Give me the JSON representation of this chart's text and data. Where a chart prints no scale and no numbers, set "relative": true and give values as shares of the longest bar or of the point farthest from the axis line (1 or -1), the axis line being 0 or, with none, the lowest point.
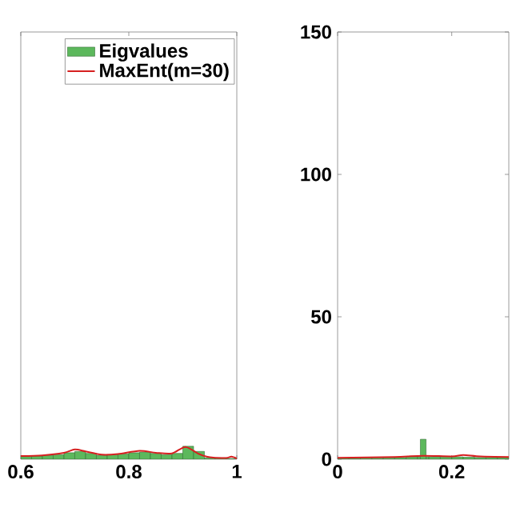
{
  "chart_data": [
    {
      "type": "histogram",
      "relative": true,
      "xlim": [
        0.6,
        1
      ],
      "xticks": [
        0.6,
        0.8,
        1
      ],
      "tick_labels": "x",
      "legend": "top right",
      "series": [
        {
          "name": "Eigvalues",
          "color": "#5cb85c",
          "bins": [
            0.6,
            0.62,
            0.64,
            0.66,
            0.68,
            0.7,
            0.72,
            0.74,
            0.76,
            0.78,
            0.8,
            0.82,
            0.84,
            0.86,
            0.88,
            0.9,
            0.92,
            0.94,
            0.96,
            0.98,
            1.0
          ],
          "values": [
            0.2,
            0.25,
            0.3,
            0.35,
            0.5,
            0.6,
            0.45,
            0.3,
            0.35,
            0.4,
            0.5,
            0.55,
            0.45,
            0.35,
            0.45,
            1.0,
            0.6,
            0.1,
            0.1,
            0.05
          ]
        },
        {
          "name": "MaxEnt(m=30)",
          "type": "line",
          "color": "#d62020",
          "x": [
            0.6,
            0.64,
            0.68,
            0.7,
            0.72,
            0.75,
            0.78,
            0.82,
            0.85,
            0.88,
            0.905,
            0.93,
            0.95,
            0.98,
            0.99,
            1.0
          ],
          "values": [
            0.25,
            0.3,
            0.5,
            0.75,
            0.6,
            0.35,
            0.4,
            0.65,
            0.5,
            0.45,
            0.95,
            0.4,
            0.15,
            0.1,
            0.2,
            0.05
          ]
        }
      ]
    },
    {
      "type": "histogram",
      "xlim": [
        0,
        0.3
      ],
      "xticks": [
        0,
        0.2
      ],
      "ylim": [
        0,
        150
      ],
      "yticks": [
        0,
        50,
        100,
        150
      ],
      "series": [
        {
          "color": "#5cb85c",
          "bins": [
            0,
            0.02,
            0.04,
            0.06,
            0.08,
            0.1,
            0.12,
            0.14,
            0.145,
            0.155,
            0.16,
            0.18,
            0.2,
            0.22,
            0.24,
            0.26,
            0.28,
            0.3
          ],
          "values": [
            0.3,
            0.3,
            0.4,
            0.4,
            0.5,
            0.6,
            0.8,
            0.8,
            7,
            0.8,
            0.8,
            0.8,
            0.8,
            0.7,
            0.6,
            0.6,
            0.6
          ]
        },
        {
          "type": "line",
          "color": "#d62020",
          "x": [
            0,
            0.1,
            0.15,
            0.2,
            0.22,
            0.25,
            0.3
          ],
          "values": [
            0.5,
            0.8,
            1.2,
            1.0,
            1.5,
            1.0,
            0.8
          ]
        }
      ]
    }
  ]
}
